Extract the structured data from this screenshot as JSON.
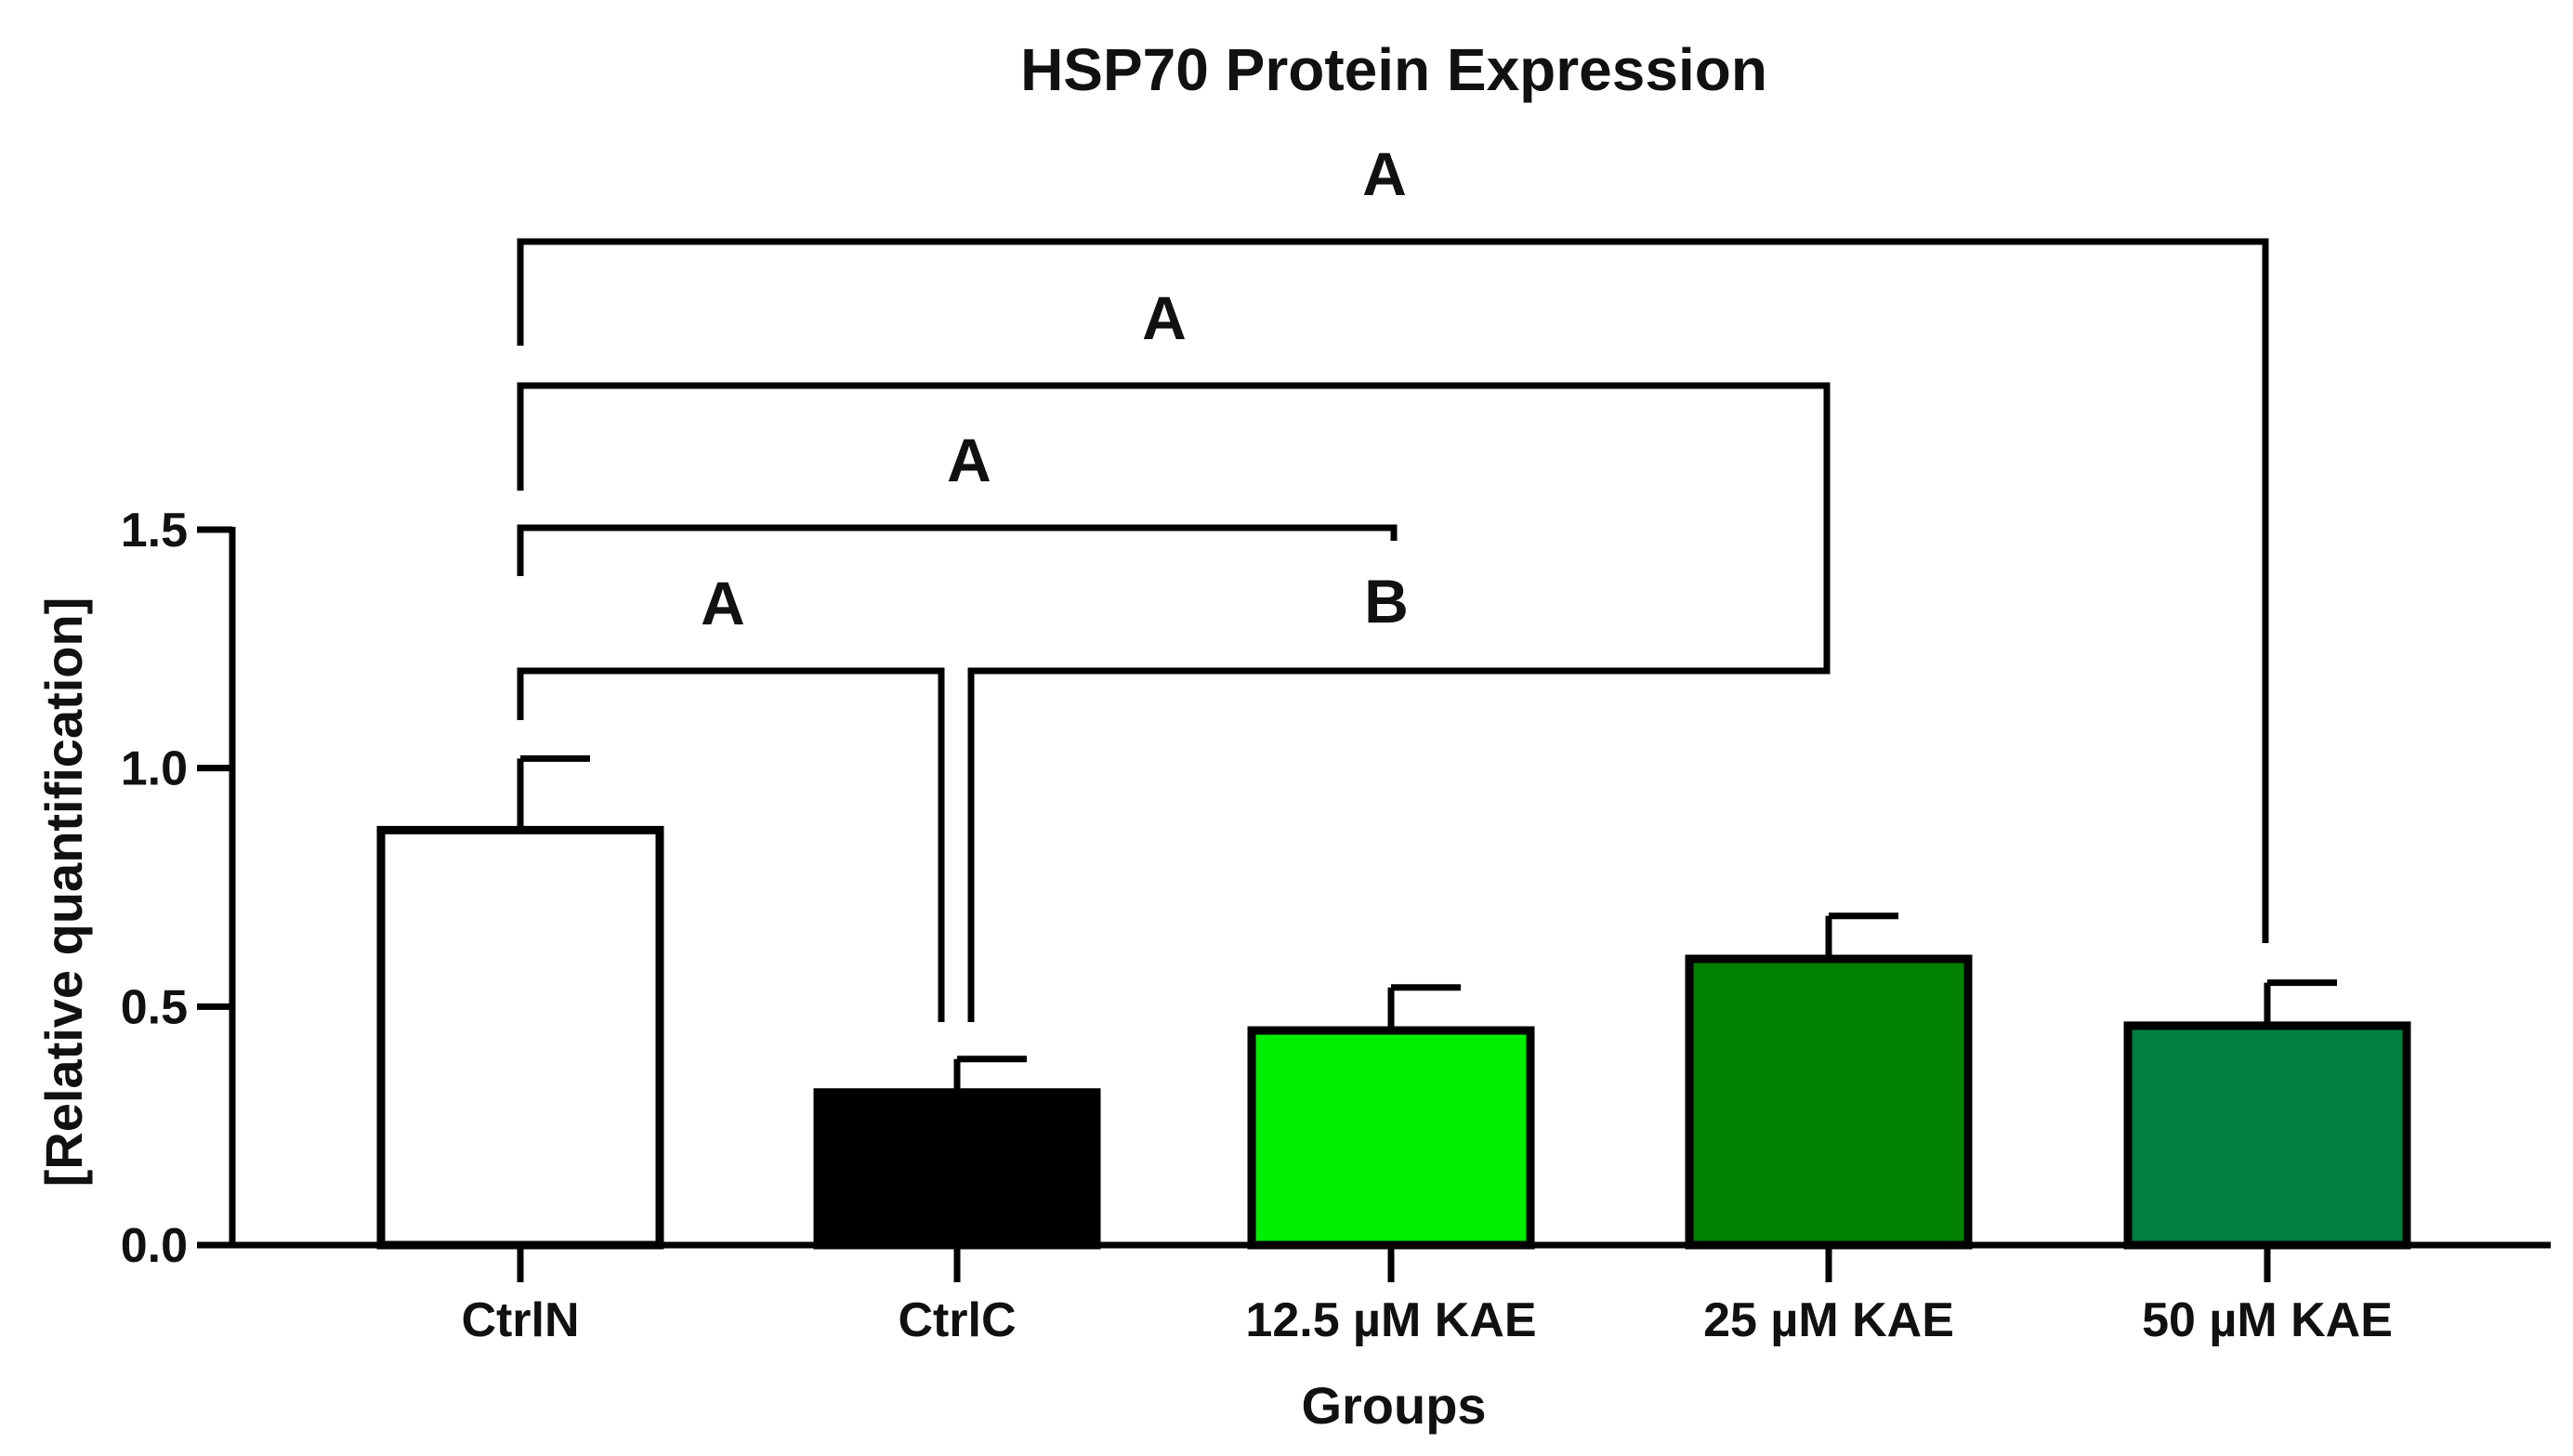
{
  "chart_data": {
    "type": "bar",
    "title": "HSP70 Protein Expression",
    "xlabel": "Groups",
    "ylabel": "[Relative quantification]",
    "categories": [
      "CtrlN",
      "CtrlC",
      "12.5 µM KAE",
      "25 µM KAE",
      "50 µM KAE"
    ],
    "values": [
      0.87,
      0.32,
      0.45,
      0.6,
      0.46
    ],
    "errors": [
      0.15,
      0.07,
      0.09,
      0.09,
      0.09
    ],
    "colors": [
      "#ffffff",
      "#000000",
      "#00ee00",
      "#008000",
      "#008040"
    ],
    "ylim": [
      0,
      1.5
    ],
    "yticks": [
      "0.0",
      "0.5",
      "1.0",
      "1.5"
    ],
    "grid": false,
    "annotations": [
      {
        "label": "A",
        "from": "CtrlN",
        "to": "CtrlC"
      },
      {
        "label": "A",
        "from": "CtrlN",
        "to": "12.5 µM KAE"
      },
      {
        "label": "A",
        "from": "CtrlN",
        "to": "25 µM KAE"
      },
      {
        "label": "A",
        "from": "CtrlN",
        "to": "50 µM KAE"
      },
      {
        "label": "B",
        "from": "CtrlC",
        "to": "25 µM KAE"
      }
    ]
  }
}
